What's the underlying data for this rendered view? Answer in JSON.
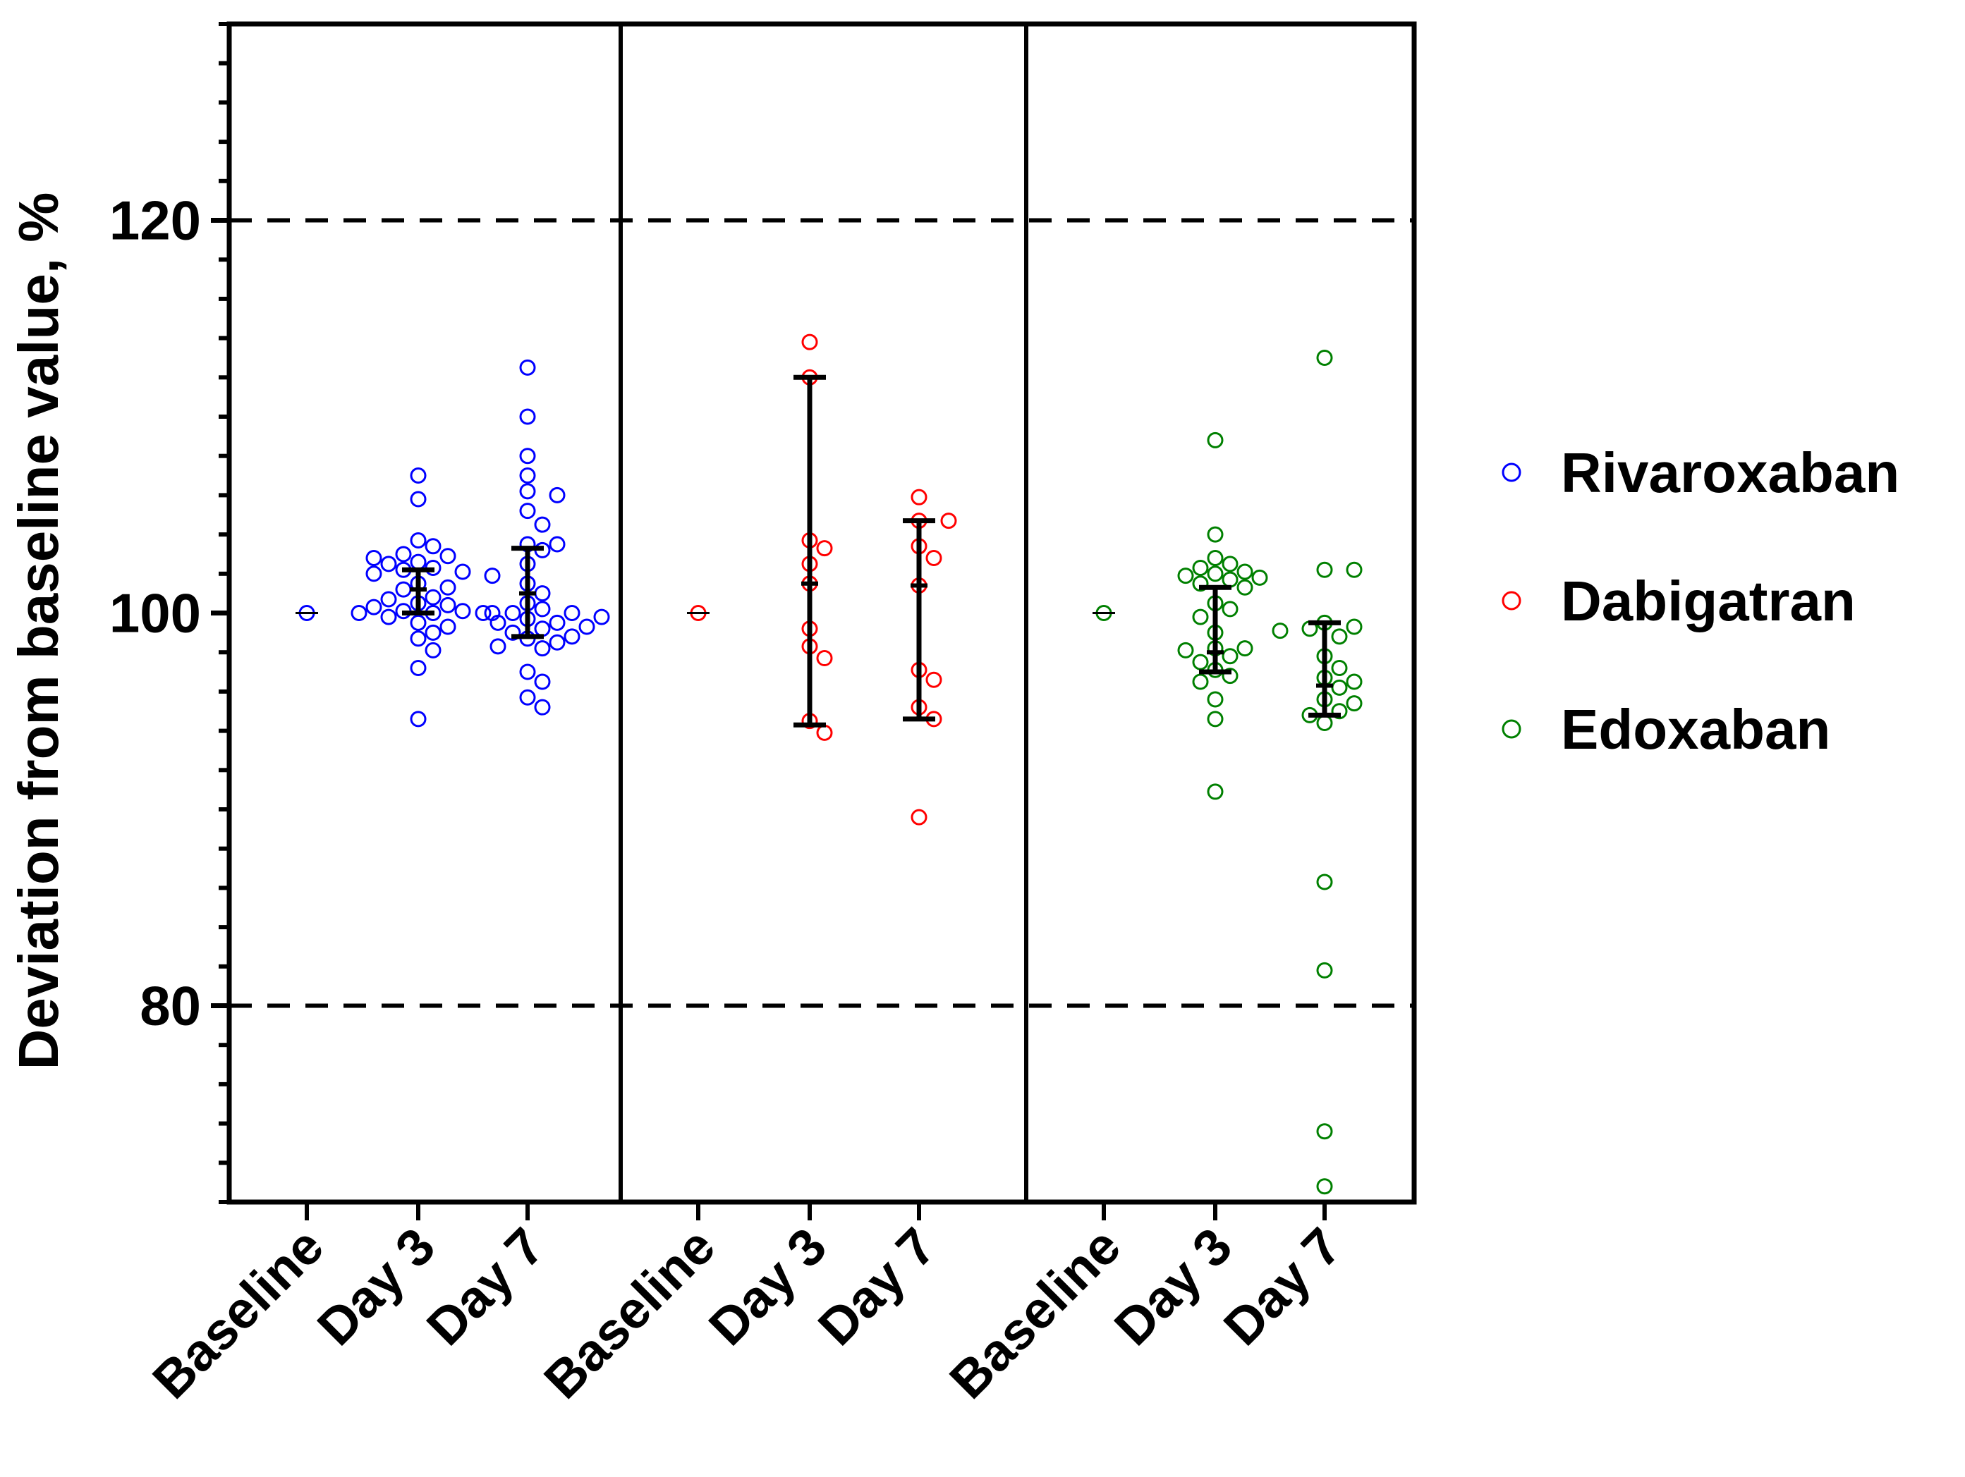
{
  "chart_data": {
    "type": "scatter",
    "subtype": "dot-plot-with-error-bars",
    "title": "",
    "xlabel": "",
    "ylabel": "Deviation from baseline value, %",
    "ylim": [
      70,
      130
    ],
    "yticks_major": [
      80,
      100,
      120
    ],
    "ytick_labels": [
      "80",
      "100",
      "120"
    ],
    "yticks_minor_step": 2,
    "reference_lines": [
      80,
      120
    ],
    "reference_line_style": "dashed",
    "grid": false,
    "categories": [
      "Baseline",
      "Day 3",
      "Day 7"
    ],
    "legend_position": "right",
    "panels": [
      {
        "name": "Rivaroxaban",
        "color": "#0000ff",
        "groups": [
          {
            "category": "Baseline",
            "points": [
              100.0
            ],
            "error_bar": null
          },
          {
            "category": "Day 3",
            "points": [
              107.0,
              105.8,
              103.7,
              103.4,
              103.0,
              102.9,
              102.8,
              102.6,
              102.5,
              102.3,
              102.2,
              102.1,
              102.0,
              101.9,
              101.5,
              101.3,
              101.2,
              100.8,
              100.7,
              100.5,
              100.4,
              100.3,
              100.1,
              100.1,
              100.0,
              100.0,
              100.0,
              99.8,
              99.5,
              99.3,
              99.0,
              98.7,
              98.1,
              97.2,
              94.6
            ],
            "error_bar": {
              "center": 101.2,
              "low": 100.0,
              "high": 102.2
            }
          },
          {
            "category": "Day 7",
            "points": [
              112.5,
              110.0,
              108.0,
              106.2,
              106.0,
              107.0,
              105.2,
              104.5,
              103.5,
              103.5,
              103.2,
              102.5,
              101.5,
              101.0,
              100.5,
              100.2,
              100.0,
              100.0,
              100.0,
              99.8,
              99.7,
              99.5,
              99.5,
              99.3,
              99.2,
              99.0,
              98.8,
              98.7,
              98.5,
              98.3,
              98.2,
              97.0,
              96.5,
              95.7,
              95.2
            ],
            "error_bar": {
              "center": 101.0,
              "low": 98.8,
              "high": 103.3
            }
          }
        ]
      },
      {
        "name": "Dabigatran",
        "color": "#ff0000",
        "groups": [
          {
            "category": "Baseline",
            "points": [
              100.0
            ],
            "error_bar": null
          },
          {
            "category": "Day 3",
            "points": [
              113.8,
              112.0,
              103.7,
              103.3,
              102.5,
              101.5,
              99.2,
              98.3,
              97.7,
              94.5,
              93.9
            ],
            "error_bar": {
              "center": 101.5,
              "low": 94.3,
              "high": 112.0
            }
          },
          {
            "category": "Day 7",
            "points": [
              105.9,
              104.7,
              104.7,
              103.4,
              102.8,
              101.4,
              97.1,
              96.6,
              95.2,
              94.6,
              89.6
            ],
            "error_bar": {
              "center": 101.4,
              "low": 94.6,
              "high": 104.7
            }
          }
        ]
      },
      {
        "name": "Edoxaban",
        "color": "#008000",
        "groups": [
          {
            "category": "Baseline",
            "points": [
              100.0
            ],
            "error_bar": null
          },
          {
            "category": "Day 3",
            "points": [
              108.8,
              104.0,
              102.8,
              102.5,
              102.3,
              102.1,
              102.0,
              101.9,
              101.8,
              101.7,
              101.5,
              101.3,
              100.5,
              100.2,
              99.8,
              99.0,
              98.2,
              98.2,
              98.1,
              97.8,
              97.5,
              97.1,
              96.8,
              96.5,
              95.6,
              94.6,
              90.9
            ],
            "error_bar": {
              "center": 98.0,
              "low": 97.0,
              "high": 101.3
            }
          },
          {
            "category": "Day 7",
            "points": [
              113.0,
              102.2,
              102.2,
              99.5,
              99.3,
              99.2,
              99.1,
              98.8,
              97.8,
              97.2,
              96.7,
              96.5,
              96.2,
              95.6,
              95.4,
              95.0,
              94.8,
              94.4,
              86.3,
              81.8,
              73.6,
              70.8
            ],
            "error_bar": {
              "center": 96.3,
              "low": 94.8,
              "high": 99.5
            }
          }
        ]
      }
    ]
  }
}
